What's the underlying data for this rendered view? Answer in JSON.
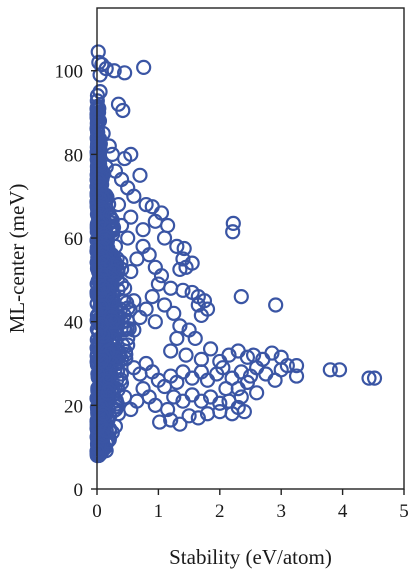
{
  "chart_data": {
    "type": "scatter",
    "title": "",
    "xlabel": "Stability (eV/atom)",
    "ylabel": "ML-center (meV)",
    "xlim": [
      0,
      5
    ],
    "ylim": [
      0,
      115
    ],
    "xticks": [
      0,
      1,
      2,
      3,
      4,
      5
    ],
    "yticks": [
      0,
      20,
      40,
      60,
      80,
      100
    ],
    "xtick_labels": [
      "0",
      "1",
      "2",
      "3",
      "4",
      "5"
    ],
    "ytick_labels": [
      "0",
      "20",
      "40",
      "60",
      "80",
      "100"
    ],
    "grid": false,
    "legend": "none",
    "marker": "open-circle",
    "marker_color": "#3a55a4",
    "series": [
      {
        "points": [
          [
            0.02,
            104.5
          ],
          [
            0.03,
            102.0
          ],
          [
            0.05,
            99.0
          ],
          [
            0.08,
            101.5
          ],
          [
            0.15,
            100.5
          ],
          [
            0.28,
            100.0
          ],
          [
            0.45,
            99.5
          ],
          [
            0.76,
            100.8
          ],
          [
            0.35,
            92.0
          ],
          [
            0.42,
            90.5
          ],
          [
            0.05,
            95.0
          ],
          [
            0.04,
            88.0
          ],
          [
            0.1,
            85.0
          ],
          [
            0.2,
            82.0
          ],
          [
            0.25,
            80.0
          ],
          [
            0.45,
            79.0
          ],
          [
            0.55,
            80.0
          ],
          [
            0.15,
            77.0
          ],
          [
            0.3,
            76.0
          ],
          [
            0.4,
            74.0
          ],
          [
            0.7,
            75.0
          ],
          [
            0.5,
            72.0
          ],
          [
            0.6,
            70.0
          ],
          [
            0.8,
            68.0
          ],
          [
            0.9,
            67.5
          ],
          [
            1.05,
            66.0
          ],
          [
            1.15,
            63.0
          ],
          [
            0.35,
            68.0
          ],
          [
            0.55,
            65.0
          ],
          [
            0.75,
            62.0
          ],
          [
            0.95,
            64.0
          ],
          [
            1.1,
            60.0
          ],
          [
            1.3,
            58.0
          ],
          [
            1.42,
            57.5
          ],
          [
            1.4,
            55.0
          ],
          [
            1.55,
            54.0
          ],
          [
            1.35,
            52.5
          ],
          [
            1.45,
            53.0
          ],
          [
            1.4,
            47.5
          ],
          [
            1.55,
            47.0
          ],
          [
            1.65,
            46.0
          ],
          [
            1.75,
            45.0
          ],
          [
            1.65,
            44.0
          ],
          [
            1.8,
            43.0
          ],
          [
            1.7,
            41.5
          ],
          [
            2.22,
            63.5
          ],
          [
            2.21,
            61.5
          ],
          [
            2.35,
            46.0
          ],
          [
            2.91,
            44.0
          ],
          [
            1.2,
            48.0
          ],
          [
            1.0,
            49.0
          ],
          [
            0.9,
            46.0
          ],
          [
            1.1,
            44.0
          ],
          [
            1.25,
            42.0
          ],
          [
            0.95,
            40.0
          ],
          [
            1.35,
            39.0
          ],
          [
            1.5,
            38.0
          ],
          [
            1.6,
            36.0
          ],
          [
            1.3,
            36.0
          ],
          [
            1.2,
            33.0
          ],
          [
            1.45,
            32.0
          ],
          [
            1.7,
            31.0
          ],
          [
            1.85,
            33.5
          ],
          [
            2.0,
            30.5
          ],
          [
            2.15,
            32.0
          ],
          [
            2.3,
            33.0
          ],
          [
            2.45,
            31.5
          ],
          [
            2.55,
            32.0
          ],
          [
            2.7,
            31.0
          ],
          [
            2.85,
            32.5
          ],
          [
            3.0,
            31.5
          ],
          [
            3.1,
            29.5
          ],
          [
            3.25,
            29.5
          ],
          [
            3.25,
            27.0
          ],
          [
            3.0,
            28.5
          ],
          [
            2.9,
            26.0
          ],
          [
            2.75,
            27.5
          ],
          [
            2.6,
            29.0
          ],
          [
            2.5,
            27.0
          ],
          [
            2.35,
            28.0
          ],
          [
            2.2,
            26.5
          ],
          [
            2.05,
            29.0
          ],
          [
            1.95,
            27.5
          ],
          [
            1.8,
            26.0
          ],
          [
            1.7,
            28.0
          ],
          [
            1.55,
            26.5
          ],
          [
            1.4,
            28.0
          ],
          [
            1.3,
            25.5
          ],
          [
            1.2,
            27.0
          ],
          [
            1.1,
            24.5
          ],
          [
            1.0,
            26.0
          ],
          [
            0.9,
            28.0
          ],
          [
            0.8,
            30.0
          ],
          [
            0.7,
            27.5
          ],
          [
            0.6,
            29.0
          ],
          [
            1.25,
            22.0
          ],
          [
            1.4,
            21.0
          ],
          [
            1.55,
            22.5
          ],
          [
            1.7,
            21.0
          ],
          [
            1.85,
            22.0
          ],
          [
            2.0,
            20.5
          ],
          [
            2.15,
            21.0
          ],
          [
            2.3,
            19.5
          ],
          [
            2.4,
            18.5
          ],
          [
            2.2,
            18.0
          ],
          [
            2.0,
            18.5
          ],
          [
            1.8,
            18.0
          ],
          [
            1.65,
            17.0
          ],
          [
            1.5,
            17.5
          ],
          [
            1.35,
            15.5
          ],
          [
            1.2,
            16.5
          ],
          [
            1.02,
            16.0
          ],
          [
            1.15,
            19.0
          ],
          [
            0.95,
            20.0
          ],
          [
            0.85,
            22.0
          ],
          [
            0.75,
            24.0
          ],
          [
            0.65,
            21.0
          ],
          [
            0.55,
            19.0
          ],
          [
            0.45,
            22.0
          ],
          [
            0.35,
            18.0
          ],
          [
            0.3,
            15.0
          ],
          [
            0.25,
            13.5
          ],
          [
            0.2,
            12.0
          ],
          [
            0.1,
            10.0
          ],
          [
            0.05,
            9.5
          ],
          [
            0.15,
            11.0
          ],
          [
            3.8,
            28.5
          ],
          [
            3.95,
            28.5
          ],
          [
            4.43,
            26.5
          ],
          [
            4.52,
            26.5
          ],
          [
            2.35,
            22.0
          ],
          [
            2.3,
            24.0
          ],
          [
            2.6,
            23.0
          ],
          [
            2.45,
            25.5
          ],
          [
            2.1,
            24.0
          ],
          [
            0.5,
            36.0
          ],
          [
            0.6,
            38.0
          ],
          [
            0.7,
            41.0
          ],
          [
            0.8,
            43.0
          ],
          [
            0.6,
            45.0
          ],
          [
            0.45,
            48.0
          ],
          [
            0.55,
            52.0
          ],
          [
            0.65,
            55.0
          ],
          [
            0.75,
            58.0
          ],
          [
            0.85,
            56.0
          ],
          [
            0.95,
            53.0
          ],
          [
            1.05,
            51.0
          ],
          [
            0.5,
            60.0
          ],
          [
            0.4,
            63.0
          ],
          [
            0.3,
            58.0
          ]
        ]
      }
    ]
  }
}
